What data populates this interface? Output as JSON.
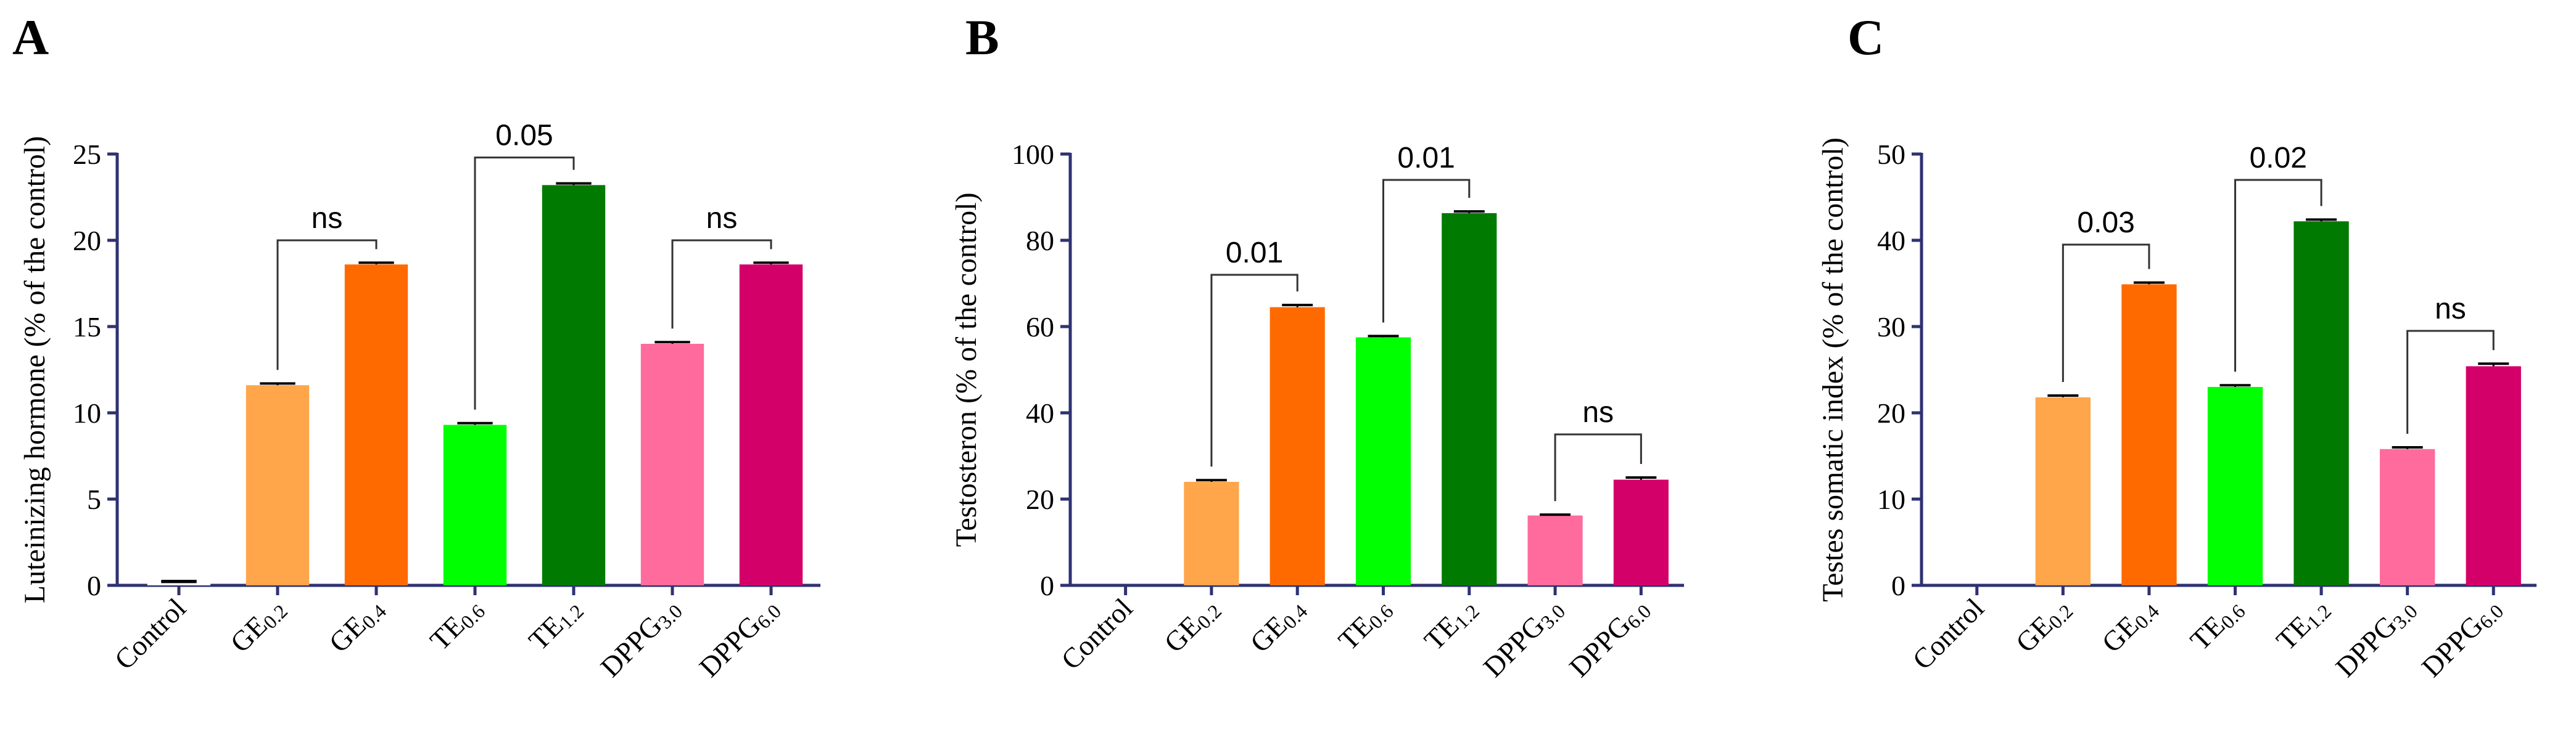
{
  "chart_data": [
    {
      "type": "bar",
      "panel": "A",
      "ylabel": "Luteinizing hormone (% of the control)",
      "ylim": [
        0,
        25
      ],
      "yticks": [
        0,
        5,
        10,
        15,
        20,
        25
      ],
      "categories": [
        {
          "base": "Control",
          "sub": ""
        },
        {
          "base": "GE",
          "sub": "0.2"
        },
        {
          "base": "GE",
          "sub": "0.4"
        },
        {
          "base": "TE",
          "sub": "0.6"
        },
        {
          "base": "TE",
          "sub": "1.2"
        },
        {
          "base": "DPPG",
          "sub": "3.0"
        },
        {
          "base": "DPPG",
          "sub": "6.0"
        }
      ],
      "values": [
        0.2,
        11.6,
        18.6,
        9.3,
        23.2,
        14.0,
        18.6
      ],
      "errors": [
        0.05,
        0.1,
        0.1,
        0.1,
        0.1,
        0.1,
        0.1
      ],
      "colors": [
        "#ffffff",
        "#ffa54a",
        "#ff6a00",
        "#00ff00",
        "#007a00",
        "#ff6b9d",
        "#d4006a"
      ],
      "comparisons": [
        {
          "from": 1,
          "to": 2,
          "label": "ns",
          "level": 20.0
        },
        {
          "from": 3,
          "to": 4,
          "label": "0.05",
          "level": 24.8
        },
        {
          "from": 5,
          "to": 6,
          "label": "ns",
          "level": 20.0
        }
      ]
    },
    {
      "type": "bar",
      "panel": "B",
      "ylabel": "Testosteron (% of the control)",
      "ylim": [
        0,
        100
      ],
      "yticks": [
        0,
        20,
        40,
        60,
        80,
        100
      ],
      "categories": [
        {
          "base": "Control",
          "sub": ""
        },
        {
          "base": "GE",
          "sub": "0.2"
        },
        {
          "base": "GE",
          "sub": "0.4"
        },
        {
          "base": "TE",
          "sub": "0.6"
        },
        {
          "base": "TE",
          "sub": "1.2"
        },
        {
          "base": "DPPG",
          "sub": "3.0"
        },
        {
          "base": "DPPG",
          "sub": "6.0"
        }
      ],
      "values": [
        0,
        24,
        64.5,
        57.5,
        86.3,
        16.2,
        24.5
      ],
      "errors": [
        0,
        0.4,
        0.5,
        0.3,
        0.4,
        0.2,
        0.5
      ],
      "colors": [
        "#ffffff",
        "#ffa54a",
        "#ff6a00",
        "#00ff00",
        "#007a00",
        "#ff6b9d",
        "#d4006a"
      ],
      "comparisons": [
        {
          "from": 1,
          "to": 2,
          "label": "0.01",
          "level": 72
        },
        {
          "from": 3,
          "to": 4,
          "label": "0.01",
          "level": 94
        },
        {
          "from": 5,
          "to": 6,
          "label": "ns",
          "level": 35
        }
      ]
    },
    {
      "type": "bar",
      "panel": "C",
      "ylabel": "Testes somatic index (% of the control)",
      "ylim": [
        0,
        50
      ],
      "yticks": [
        0,
        10,
        20,
        30,
        40,
        50
      ],
      "categories": [
        {
          "base": "Control",
          "sub": ""
        },
        {
          "base": "GE",
          "sub": "0.2"
        },
        {
          "base": "GE",
          "sub": "0.4"
        },
        {
          "base": "TE",
          "sub": "0.6"
        },
        {
          "base": "TE",
          "sub": "1.2"
        },
        {
          "base": "DPPG",
          "sub": "3.0"
        },
        {
          "base": "DPPG",
          "sub": "6.0"
        }
      ],
      "values": [
        0,
        21.8,
        34.9,
        23.0,
        42.2,
        15.8,
        25.4
      ],
      "errors": [
        0,
        0.2,
        0.2,
        0.2,
        0.2,
        0.2,
        0.3
      ],
      "colors": [
        "#ffffff",
        "#ffa54a",
        "#ff6a00",
        "#00ff00",
        "#007a00",
        "#ff6b9d",
        "#d4006a"
      ],
      "comparisons": [
        {
          "from": 1,
          "to": 2,
          "label": "0.03",
          "level": 39.5
        },
        {
          "from": 3,
          "to": 4,
          "label": "0.02",
          "level": 47.0
        },
        {
          "from": 5,
          "to": 6,
          "label": "ns",
          "level": 29.5
        }
      ]
    }
  ]
}
